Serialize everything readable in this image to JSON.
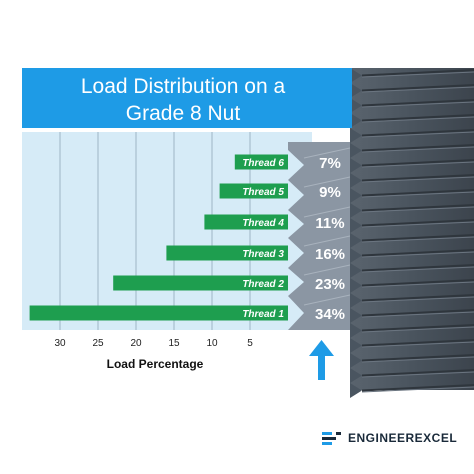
{
  "chart_data": {
    "type": "bar",
    "orientation": "horizontal",
    "direction": "right-to-left",
    "title_lines": [
      "Load Distribution on a",
      "Grade 8 Nut"
    ],
    "xlabel": "Load Percentage",
    "xticks": [
      30,
      25,
      20,
      15,
      10,
      5
    ],
    "xlim": [
      0,
      36
    ],
    "grid": true,
    "categories": [
      "Thread 6",
      "Thread 5",
      "Thread 4",
      "Thread 3",
      "Thread 2",
      "Thread 1"
    ],
    "values": [
      7,
      9,
      11,
      16,
      23,
      34
    ],
    "value_labels": [
      "7%",
      "9%",
      "11%",
      "16%",
      "23%",
      "34%"
    ],
    "colors": {
      "bar": "#1e9e4f",
      "title_band": "#1e9be6",
      "plot_bg": "#d6ebf7",
      "grid": "#9fb6c6",
      "arrow": "#1e9be6",
      "bolt": "#4a5560",
      "nut": "#8b96a3"
    }
  },
  "brand": {
    "name": "ENGINEEREXCEL",
    "icon": "engineerexcel-logo-icon",
    "color": "#1a2a3a"
  }
}
